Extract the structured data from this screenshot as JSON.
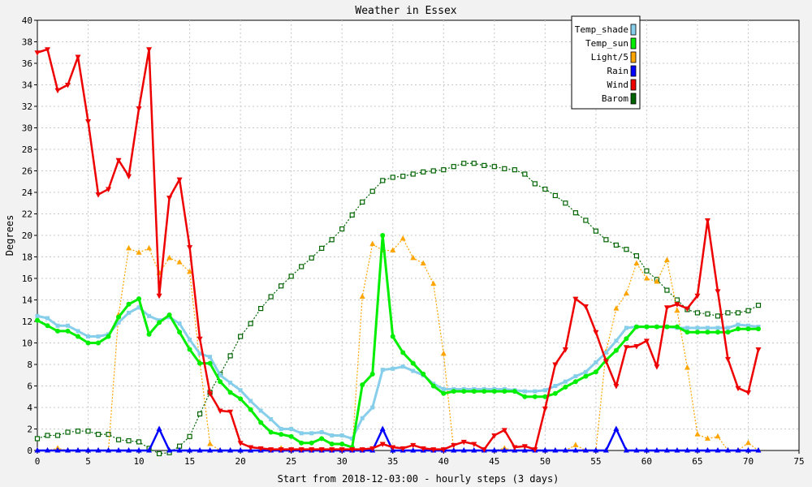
{
  "chart_data": {
    "type": "line",
    "title": "Weather in Essex",
    "xlabel": "Start from 2018-12-03:00 - hourly steps (3 days)",
    "ylabel": "Degrees",
    "xlim": [
      0,
      75
    ],
    "ylim": [
      0,
      40
    ],
    "x_ticks": [
      0,
      5,
      10,
      15,
      20,
      25,
      30,
      35,
      40,
      45,
      50,
      55,
      60,
      65,
      70,
      75
    ],
    "y_ticks": [
      0,
      2,
      4,
      6,
      8,
      10,
      12,
      14,
      16,
      18,
      20,
      22,
      24,
      26,
      28,
      30,
      32,
      34,
      36,
      38,
      40
    ],
    "grid": true,
    "legend_position": "top-right",
    "series": [
      {
        "name": "Temp_shade",
        "color": "#87ceeb",
        "marker": "square",
        "values": [
          12.5,
          12.3,
          11.6,
          11.6,
          11.1,
          10.6,
          10.6,
          10.8,
          11.9,
          12.8,
          13.3,
          12.5,
          12.1,
          12.4,
          11.8,
          10.3,
          9.0,
          8.7,
          7.0,
          6.3,
          5.6,
          4.6,
          3.7,
          2.9,
          2.0,
          2.0,
          1.6,
          1.6,
          1.7,
          1.4,
          1.4,
          1.1,
          3.0,
          4.0,
          7.5,
          7.6,
          7.8,
          7.4,
          7.0,
          6.2,
          5.7,
          5.7,
          5.7,
          5.7,
          5.7,
          5.7,
          5.7,
          5.6,
          5.5,
          5.5,
          5.6,
          6.0,
          6.4,
          6.9,
          7.3,
          8.2,
          9.1,
          10.2,
          11.4,
          11.5,
          11.5,
          11.5,
          11.5,
          11.4,
          11.4,
          11.4,
          11.4,
          11.4,
          11.4,
          11.7,
          11.6,
          11.5
        ]
      },
      {
        "name": "Temp_sun",
        "color": "#00ee00",
        "marker": "circle",
        "values": [
          12.1,
          11.6,
          11.1,
          11.1,
          10.6,
          10.0,
          10.0,
          10.6,
          12.4,
          13.6,
          14.1,
          10.8,
          11.9,
          12.6,
          11.0,
          9.4,
          8.1,
          8.1,
          6.4,
          5.4,
          4.8,
          3.8,
          2.6,
          1.7,
          1.5,
          1.3,
          0.7,
          0.7,
          1.1,
          0.6,
          0.6,
          0.3,
          6.1,
          7.1,
          20.0,
          10.6,
          9.1,
          8.1,
          7.1,
          6.0,
          5.3,
          5.5,
          5.5,
          5.5,
          5.5,
          5.5,
          5.5,
          5.5,
          5.0,
          5.0,
          5.0,
          5.3,
          5.9,
          6.4,
          6.9,
          7.3,
          8.4,
          9.3,
          10.4,
          11.5,
          11.5,
          11.5,
          11.5,
          11.5,
          11.0,
          11.0,
          11.0,
          11.0,
          11.0,
          11.3,
          11.3,
          11.3
        ]
      },
      {
        "name": "Light/5",
        "color": "#ffa500",
        "marker": "triangle-up",
        "values": [
          0,
          0,
          0.2,
          0,
          0,
          0,
          0,
          0,
          12.6,
          18.8,
          18.4,
          18.8,
          16.5,
          17.9,
          17.5,
          16.6,
          8.2,
          0.6,
          0,
          0,
          0,
          0,
          0,
          0,
          0.2,
          0,
          0,
          0,
          0,
          0,
          0,
          0,
          14.3,
          19.2,
          18.6,
          18.6,
          19.7,
          17.9,
          17.4,
          15.5,
          9.0,
          0,
          0,
          0,
          0,
          0,
          0.2,
          0,
          0,
          0,
          0,
          0,
          0,
          0.5,
          0,
          0,
          9.2,
          13.2,
          14.6,
          17.4,
          16.0,
          15.7,
          17.7,
          13.0,
          7.7,
          1.5,
          1.1,
          1.3,
          0,
          0,
          0.7,
          0
        ]
      },
      {
        "name": "Rain",
        "color": "#0000ff",
        "marker": "triangle-up",
        "values": [
          0,
          0,
          0,
          0,
          0,
          0,
          0,
          0,
          0,
          0,
          0,
          0,
          2.0,
          0,
          0,
          0,
          0,
          0,
          0,
          0,
          0,
          0,
          0,
          0,
          0,
          0,
          0,
          0,
          0,
          0,
          0,
          0,
          0,
          0,
          2.0,
          0,
          0,
          0,
          0,
          0,
          0,
          0,
          0,
          0,
          0,
          0,
          0,
          0,
          0,
          0,
          0,
          0,
          0,
          0,
          0,
          0,
          0,
          2.0,
          0,
          0,
          0,
          0,
          0,
          0,
          0,
          0,
          0,
          0,
          0,
          0,
          0,
          0
        ]
      },
      {
        "name": "Wind",
        "color": "#ee0000",
        "marker": "triangle-down",
        "values": [
          37.0,
          37.3,
          33.5,
          34.0,
          36.6,
          30.6,
          23.8,
          24.3,
          27.0,
          25.5,
          31.8,
          37.3,
          14.4,
          23.5,
          25.2,
          18.9,
          10.4,
          5.3,
          3.7,
          3.6,
          0.7,
          0.3,
          0.2,
          0.1,
          0.1,
          0.1,
          0.1,
          0.1,
          0.1,
          0.1,
          0.1,
          0.1,
          0.1,
          0.2,
          0.6,
          0.3,
          0.2,
          0.5,
          0.2,
          0.1,
          0.1,
          0.5,
          0.8,
          0.6,
          0.1,
          1.4,
          1.9,
          0.3,
          0.4,
          0.1,
          3.9,
          8.0,
          9.4,
          14.1,
          13.4,
          11.0,
          8.3,
          6.0,
          9.6,
          9.7,
          10.2,
          7.8,
          13.3,
          13.6,
          13.2,
          14.4,
          21.4,
          14.8,
          8.5,
          5.8,
          5.4,
          9.4
        ]
      },
      {
        "name": "Barom",
        "color": "#006400",
        "marker": "open-square",
        "values": [
          1.1,
          1.4,
          1.4,
          1.7,
          1.8,
          1.8,
          1.5,
          1.5,
          1.0,
          0.9,
          0.8,
          0.2,
          -0.3,
          -0.2,
          0.4,
          1.3,
          3.4,
          5.4,
          7.1,
          8.8,
          10.6,
          11.8,
          13.2,
          14.3,
          15.3,
          16.2,
          17.1,
          17.9,
          18.8,
          19.6,
          20.6,
          21.9,
          23.1,
          24.1,
          25.1,
          25.4,
          25.5,
          25.7,
          25.9,
          26.0,
          26.1,
          26.4,
          26.7,
          26.7,
          26.5,
          26.4,
          26.2,
          26.1,
          25.7,
          24.8,
          24.3,
          23.7,
          23.0,
          22.1,
          21.4,
          20.4,
          19.6,
          19.1,
          18.7,
          18.1,
          16.7,
          15.9,
          14.9,
          14.0,
          13.1,
          12.8,
          12.7,
          12.5,
          12.8,
          12.8,
          13.0,
          13.5
        ]
      }
    ]
  }
}
